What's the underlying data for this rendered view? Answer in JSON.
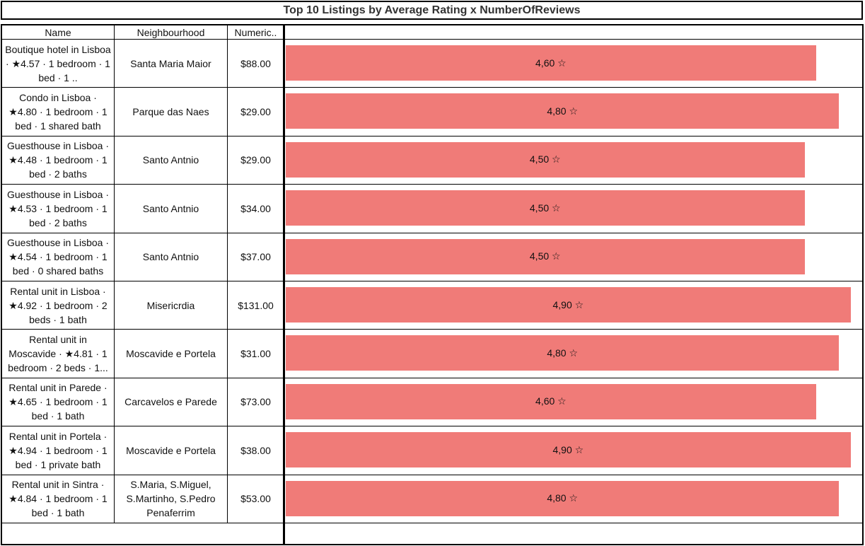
{
  "title": "Top 10 Listings by Average Rating x NumberOfReviews",
  "columns": {
    "name": "Name",
    "neighbourhood": "Neighbourhood",
    "numeric": "Numeric.."
  },
  "colors": {
    "bar": "#f07b78",
    "border": "#000000",
    "title": "#333333"
  },
  "chart_data": {
    "type": "bar",
    "orientation": "horizontal",
    "title": "Top 10 Listings by Average Rating x NumberOfReviews",
    "xlim": [
      0,
      5
    ],
    "categories": [
      "Boutique hotel in Lisboa · ★4.57 · 1 bedroom · 1 bed · 1 ..",
      "Condo in Lisboa · ★4.80 · 1 bedroom · 1 bed · 1 shared bath",
      "Guesthouse in Lisboa · ★4.48 · 1 bedroom · 1 bed · 2 baths",
      "Guesthouse in Lisboa · ★4.53 · 1 bedroom · 1 bed · 2 baths",
      "Guesthouse in Lisboa · ★4.54 · 1 bedroom · 1 bed · 0 shared baths",
      "Rental unit in Lisboa · ★4.92 · 1 bedroom · 2 beds · 1 bath",
      "Rental unit in Moscavide · ★4.81 · 1 bedroom · 2 beds · 1...",
      "Rental unit in Parede · ★4.65 · 1 bedroom · 1 bed · 1 bath",
      "Rental unit in Portela · ★4.94 · 1 bedroom · 1 bed · 1 private bath",
      "Rental unit in Sintra · ★4.84 · 1 bedroom · 1 bed · 1 bath"
    ],
    "values": [
      4.6,
      4.8,
      4.5,
      4.5,
      4.5,
      4.9,
      4.8,
      4.6,
      4.9,
      4.8
    ],
    "data_labels": [
      "4,60 ☆",
      "4,80 ☆",
      "4,50 ☆",
      "4,50 ☆",
      "4,50 ☆",
      "4,90 ☆",
      "4,80 ☆",
      "4,60 ☆",
      "4,90 ☆",
      "4,80 ☆"
    ]
  },
  "rows": [
    {
      "name": "Boutique hotel in Lisboa · ★4.57 · 1 bedroom · 1 bed · 1 ..",
      "neighbourhood": "Santa Maria Maior",
      "numeric": "$88.00"
    },
    {
      "name": "Condo in Lisboa · ★4.80 · 1 bedroom · 1 bed · 1 shared bath",
      "neighbourhood": "Parque das Naes",
      "numeric": "$29.00"
    },
    {
      "name": "Guesthouse in Lisboa · ★4.48 · 1 bedroom · 1 bed · 2 baths",
      "neighbourhood": "Santo Antnio",
      "numeric": "$29.00"
    },
    {
      "name": "Guesthouse in Lisboa · ★4.53 · 1 bedroom · 1 bed · 2 baths",
      "neighbourhood": "Santo Antnio",
      "numeric": "$34.00"
    },
    {
      "name": "Guesthouse in Lisboa · ★4.54 · 1 bedroom · 1 bed · 0 shared baths",
      "neighbourhood": "Santo Antnio",
      "numeric": "$37.00"
    },
    {
      "name": "Rental unit in Lisboa · ★4.92 · 1 bedroom · 2 beds · 1 bath",
      "neighbourhood": "Misericrdia",
      "numeric": "$131.00"
    },
    {
      "name": "Rental unit in Moscavide · ★4.81 · 1 bedroom · 2 beds · 1...",
      "neighbourhood": "Moscavide e Portela",
      "numeric": "$31.00"
    },
    {
      "name": "Rental unit in Parede · ★4.65 · 1 bedroom · 1 bed · 1 bath",
      "neighbourhood": "Carcavelos e Parede",
      "numeric": "$73.00"
    },
    {
      "name": "Rental unit in Portela · ★4.94 · 1 bedroom · 1 bed · 1 private bath",
      "neighbourhood": "Moscavide e Portela",
      "numeric": "$38.00"
    },
    {
      "name": "Rental unit in Sintra · ★4.84 · 1 bedroom · 1 bed · 1 bath",
      "neighbourhood": "S.Maria, S.Miguel, S.Martinho, S.Pedro Penaferrim",
      "numeric": "$53.00"
    }
  ]
}
